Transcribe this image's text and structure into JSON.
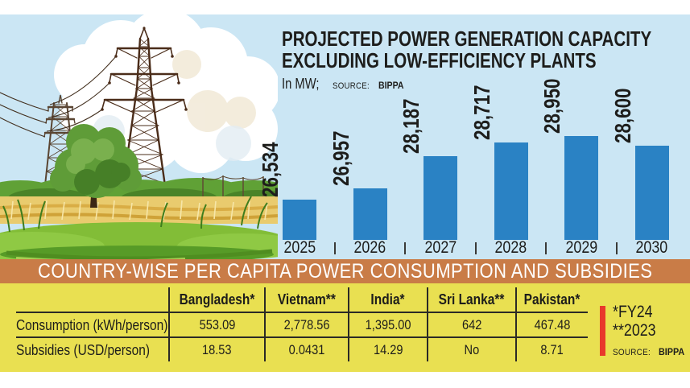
{
  "colors": {
    "sky": "#cbe6f4",
    "bar_blue": "#2a82c4",
    "banner_orange": "#c97c47",
    "panel_yellow": "#e9e051",
    "accent_red": "#e8392b",
    "ink": "#1d1d1b",
    "banner_text": "#ffffff"
  },
  "illustration": {
    "label": "power-transmission-towers-over-wheat-field"
  },
  "chart_data": [
    {
      "type": "bar",
      "title": "PROJECTED POWER GENERATION CAPACITY EXCLUDING LOW-EFFICIENCY PLANTS",
      "title_lines": [
        "PROJECTED POWER GENERATION CAPACITY",
        "EXCLUDING LOW-EFFICIENCY PLANTS"
      ],
      "unit_label": "In MW;",
      "source_prefix": "SOURCE:",
      "source_name": "BIPPA",
      "categories": [
        "2025",
        "2026",
        "2027",
        "2028",
        "2029",
        "2030"
      ],
      "values": [
        26534,
        26957,
        28187,
        28717,
        28950,
        28600
      ],
      "value_labels": [
        "26,534",
        "26,957",
        "28,187",
        "28,717",
        "28,950",
        "28,600"
      ],
      "xlabel": "",
      "ylabel": "MW",
      "ylim": [
        25000,
        29200
      ],
      "grid": false,
      "legend": "none",
      "value_label_rotation": -90
    },
    {
      "type": "table",
      "title": "COUNTRY-WISE PER CAPITA POWER CONSUMPTION AND SUBSIDIES",
      "columns": [
        "",
        "Bangladesh*",
        "Vietnam**",
        "India*",
        "Sri Lanka**",
        "Pakistan*"
      ],
      "rows": [
        [
          "Consumption (kWh/person)",
          "553.09",
          "2,778.56",
          "1,395.00",
          "642",
          "467.48"
        ],
        [
          "Subsidies (USD/person)",
          "18.53",
          "0.0431",
          "14.29",
          "No",
          "8.71"
        ]
      ],
      "footnotes": [
        "*FY24",
        "**2023"
      ],
      "source_prefix": "SOURCE:",
      "source_name": "BIPPA"
    }
  ]
}
